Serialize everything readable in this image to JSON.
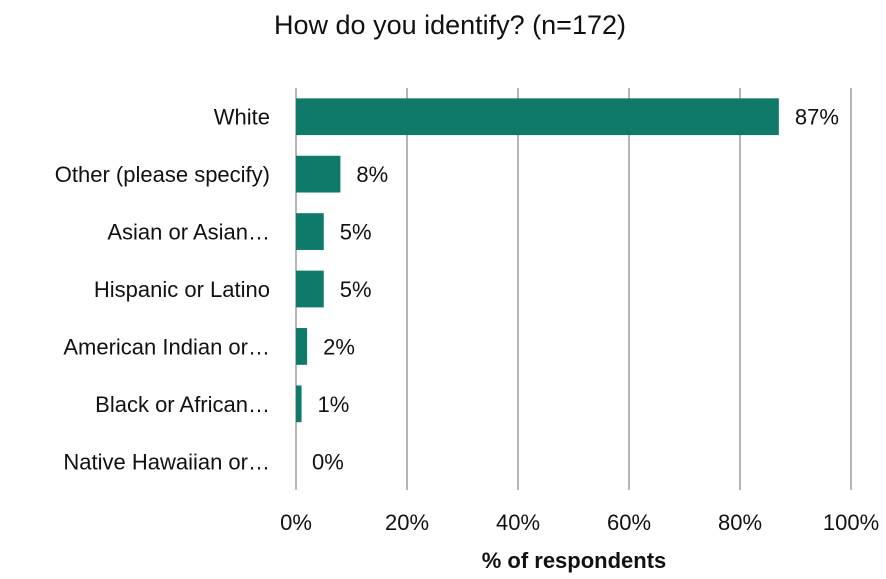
{
  "chart_data": {
    "type": "bar",
    "orientation": "horizontal",
    "title": "How do you identify? (n=172)",
    "xlabel": "% of respondents",
    "ylabel": "",
    "categories": [
      "White",
      "Other (please specify)",
      "Asian or Asian…",
      "Hispanic or Latino",
      "American Indian or…",
      "Black or African…",
      "Native Hawaiian or…"
    ],
    "values": [
      87,
      8,
      5,
      5,
      2,
      1,
      0
    ],
    "data_labels": [
      "87%",
      "8%",
      "5%",
      "5%",
      "2%",
      "1%",
      "0%"
    ],
    "xlim": [
      0,
      100
    ],
    "x_ticks": [
      0,
      20,
      40,
      60,
      80,
      100
    ],
    "x_tick_labels": [
      "0%",
      "20%",
      "40%",
      "60%",
      "80%",
      "100%"
    ],
    "grid": "vertical",
    "legend": "none",
    "bar_color": "#0f7a69"
  }
}
